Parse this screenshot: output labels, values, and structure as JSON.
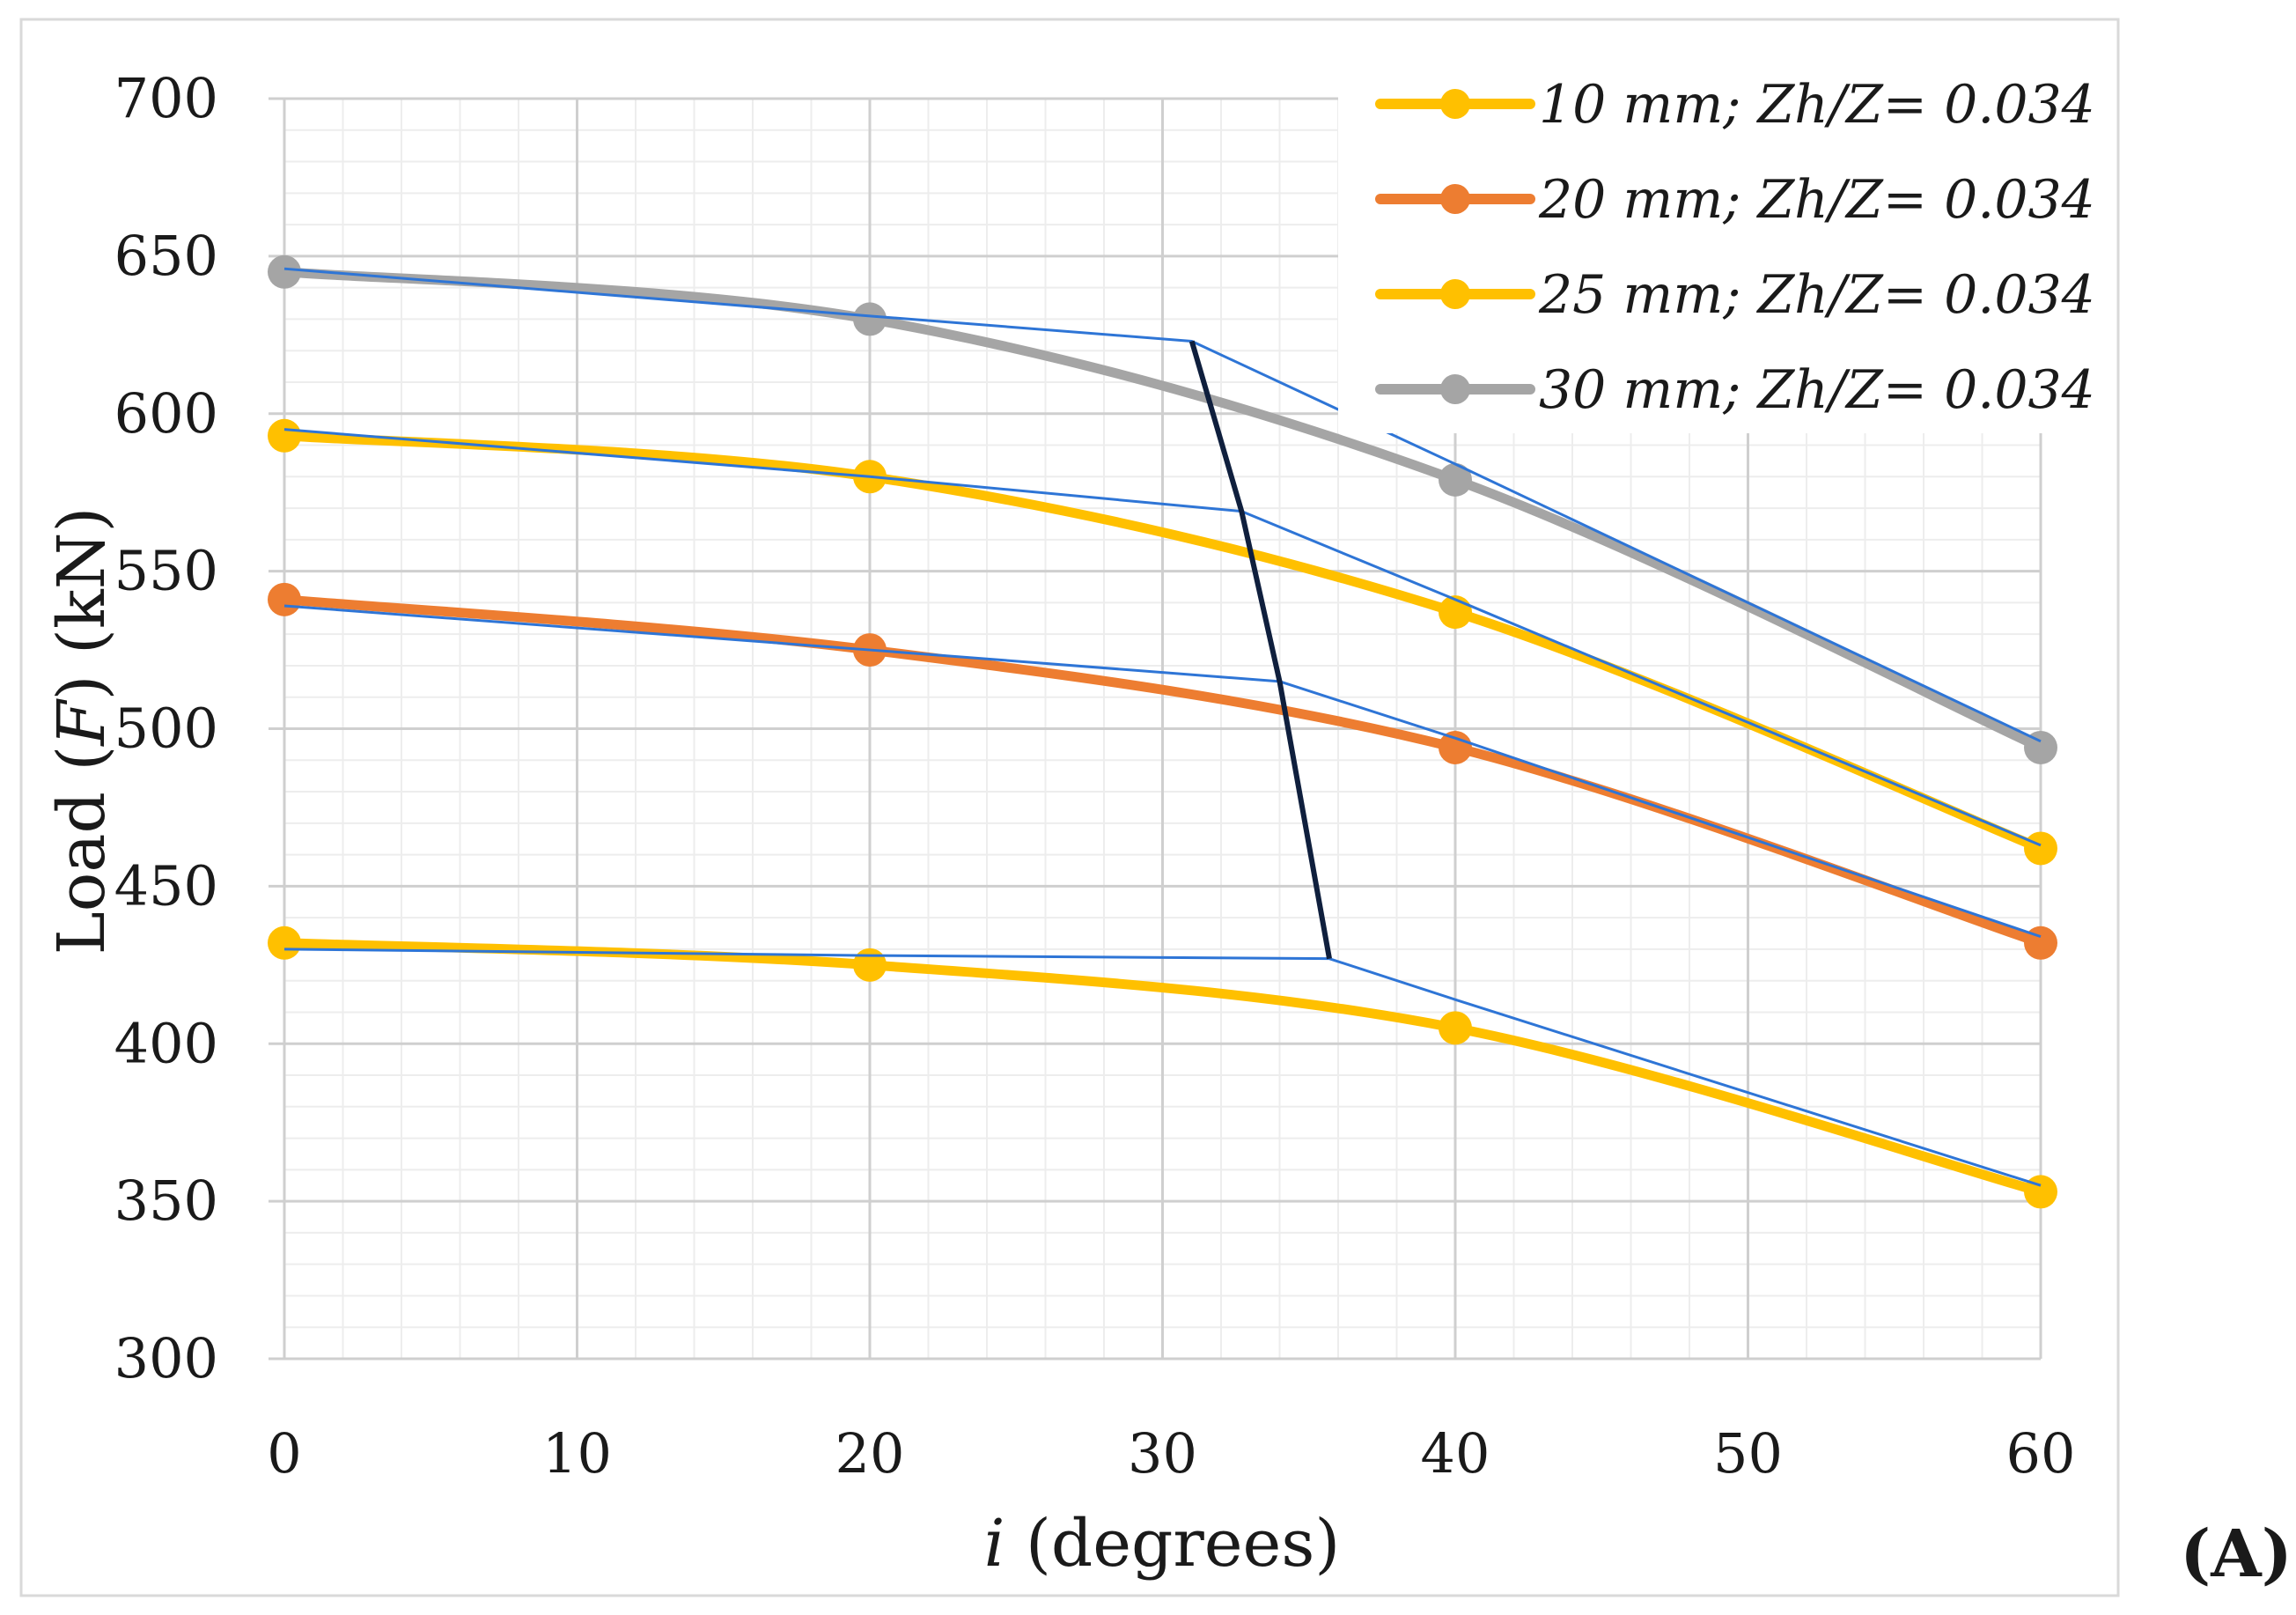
{
  "chart_data": {
    "type": "line",
    "title": "",
    "xlabel_italic": "i",
    "xlabel_rest": " (degrees)",
    "ylabel_start": "Load (",
    "ylabel_italic": "F",
    "ylabel_end": ") (kN)",
    "xlim": [
      0,
      60
    ],
    "ylim": [
      300,
      700
    ],
    "xticks": [
      0,
      10,
      20,
      30,
      40,
      50,
      60
    ],
    "yticks": [
      300,
      350,
      400,
      450,
      500,
      550,
      600,
      650,
      700
    ],
    "x_tick_labels": [
      "0",
      "10",
      "20",
      "30",
      "40",
      "50",
      "60"
    ],
    "y_tick_labels": [
      "300",
      "350",
      "400",
      "450",
      "500",
      "550",
      "600",
      "650",
      "700"
    ],
    "grid": true,
    "legend_position": "top-right",
    "panel_label": "(A)",
    "x": [
      0,
      20,
      40,
      60
    ],
    "series": [
      {
        "name": "10 mm; Zh/Z= 0.034",
        "color": "#FFC000",
        "values": [
          432,
          425,
          405,
          353
        ]
      },
      {
        "name": "20 mm; Zh/Z= 0.034",
        "color": "#ED7D31",
        "values": [
          541,
          525,
          494,
          432
        ]
      },
      {
        "name": "25 mm; Zh/Z= 0.034",
        "color": "#FFC000",
        "values": [
          593,
          580,
          537,
          462
        ]
      },
      {
        "name": "30 mm; Zh/Z= 0.034",
        "color": "#A5A5A5",
        "values": [
          645,
          630,
          579,
          494
        ]
      }
    ],
    "annotation_lines": {
      "color": "#2E75D6",
      "tangents": [
        {
          "series": "10 mm; Zh/Z= 0.034",
          "points": [
            [
              0,
              430
            ],
            [
              20,
              428
            ],
            [
              35.7,
              427
            ],
            [
              40,
              414
            ],
            [
              60,
              355
            ]
          ]
        },
        {
          "series": "20 mm; Zh/Z= 0.034",
          "points": [
            [
              0,
              539
            ],
            [
              20,
              525
            ],
            [
              34,
              515
            ],
            [
              40,
              497
            ],
            [
              60,
              434
            ]
          ]
        },
        {
          "series": "25 mm; Zh/Z= 0.034",
          "points": [
            [
              0,
              595
            ],
            [
              20,
              580
            ],
            [
              32.7,
              569
            ],
            [
              40,
              541
            ],
            [
              60,
              463
            ]
          ]
        },
        {
          "series": "30 mm; Zh/Z= 0.034",
          "points": [
            [
              0,
              646
            ],
            [
              20,
              631
            ],
            [
              31,
              623
            ],
            [
              40,
              584
            ],
            [
              60,
              496
            ]
          ]
        }
      ],
      "transition_line": {
        "color": "#0F1F3D",
        "points": [
          [
            31,
            623
          ],
          [
            32.7,
            569
          ],
          [
            34,
            515
          ],
          [
            35.7,
            427
          ]
        ]
      }
    }
  }
}
